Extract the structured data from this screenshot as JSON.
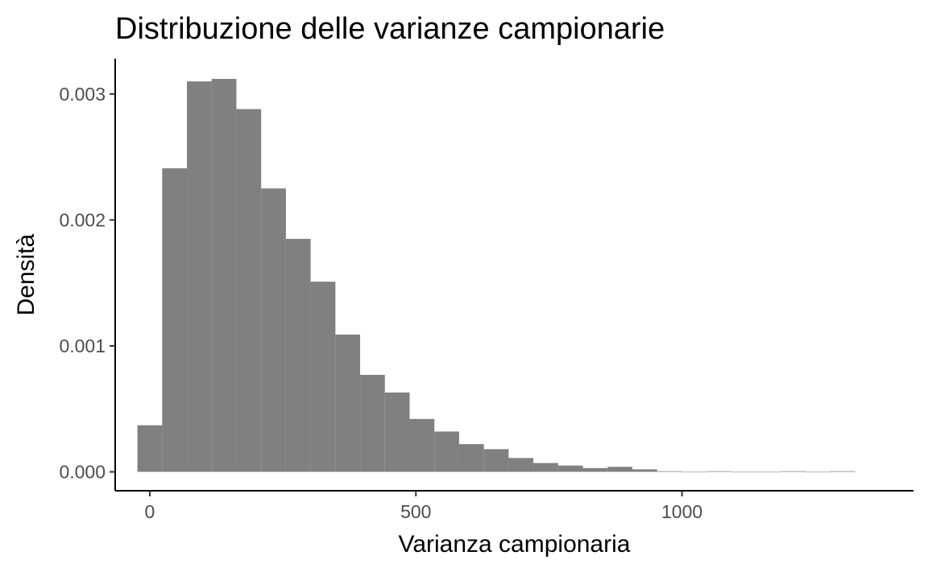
{
  "chart_data": {
    "type": "bar",
    "title": "Distribuzione delle varianze campionarie",
    "xlabel": "Varianza campionaria",
    "ylabel": "Densità",
    "xlim": [
      -65,
      1435
    ],
    "ylim": [
      -0.00015,
      0.00328
    ],
    "x_ticks": [
      0,
      500,
      1000
    ],
    "x_tick_labels": [
      "0",
      "500",
      "1000"
    ],
    "y_ticks": [
      0,
      0.001,
      0.002,
      0.003
    ],
    "y_tick_labels": [
      "0.000",
      "0.001",
      "0.002",
      "0.003"
    ],
    "bin_width": 46.5,
    "bin_start": -23.25,
    "values": [
      0.00037,
      0.00241,
      0.0031,
      0.00312,
      0.00288,
      0.00225,
      0.00185,
      0.00151,
      0.00109,
      0.00077,
      0.00063,
      0.00042,
      0.00032,
      0.00022,
      0.00018,
      0.00011,
      7e-05,
      5e-05,
      3e-05,
      4e-05,
      2e-05,
      5e-06,
      0.0,
      5e-06,
      0.0,
      0.0,
      5e-06,
      0.0,
      5e-06
    ],
    "bar_color": "#808080",
    "grid": false,
    "legend": "none"
  }
}
